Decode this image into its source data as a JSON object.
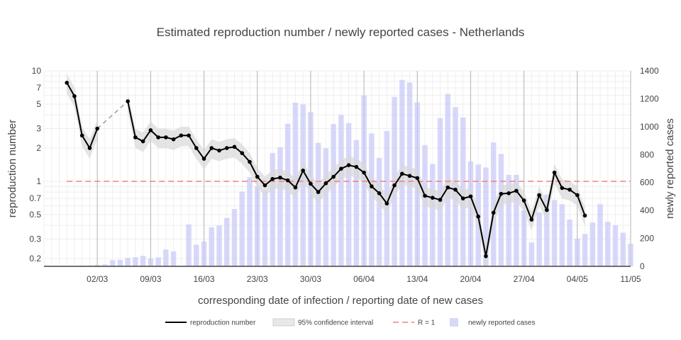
{
  "chart_data": {
    "type": "line",
    "title": "Estimated reproduction number / newly reported cases - Netherlands",
    "xlabel": "corresponding date of infection / reporting date of new cases",
    "ylabel_left": "reproduction number",
    "ylabel_right": "newly reported cases",
    "x_range": [
      "2020-02-24",
      "2020-05-11"
    ],
    "x_ticks": [
      "02/03",
      "09/03",
      "16/03",
      "23/03",
      "30/03",
      "06/04",
      "13/04",
      "20/04",
      "27/04",
      "04/05",
      "11/05"
    ],
    "x_tick_dates": [
      "2020-03-02",
      "2020-03-09",
      "2020-03-16",
      "2020-03-23",
      "2020-03-30",
      "2020-04-06",
      "2020-04-13",
      "2020-04-20",
      "2020-04-27",
      "2020-05-04",
      "2020-05-11"
    ],
    "y_left_scale": "log",
    "y_left_range": [
      0.17,
      10
    ],
    "y_left_ticks": [
      {
        "v": 0.2,
        "label": "0.2"
      },
      {
        "v": 0.3,
        "label": "0.3"
      },
      {
        "v": 0.5,
        "label": "0.5"
      },
      {
        "v": 0.7,
        "label": "0.7"
      },
      {
        "v": 1,
        "label": "1"
      },
      {
        "v": 2,
        "label": "2"
      },
      {
        "v": 3,
        "label": "3"
      },
      {
        "v": 5,
        "label": "5"
      },
      {
        "v": 7,
        "label": "7"
      },
      {
        "v": 10,
        "label": "10"
      }
    ],
    "y_right_range": [
      0,
      1400
    ],
    "y_right_ticks": [
      0,
      200,
      400,
      600,
      800,
      1000,
      1200,
      1400
    ],
    "grid": true,
    "legend_position": "bottom-center",
    "colors": {
      "r_line": "#000000",
      "ci_band": "#cccccc",
      "r_one": "#f08080",
      "bars": "#c8c8f8"
    },
    "series": [
      {
        "name": "reproduction number",
        "type": "line",
        "axis": "left",
        "points": [
          [
            "2020-02-27",
            7.8
          ],
          [
            "2020-02-28",
            5.9
          ],
          [
            "2020-02-29",
            2.6
          ],
          [
            "2020-03-01",
            2.0
          ],
          [
            "2020-03-02",
            3.0
          ],
          [
            "2020-03-06",
            5.3
          ],
          [
            "2020-03-07",
            2.5
          ],
          [
            "2020-03-08",
            2.3
          ],
          [
            "2020-03-09",
            2.9
          ],
          [
            "2020-03-10",
            2.5
          ],
          [
            "2020-03-11",
            2.5
          ],
          [
            "2020-03-12",
            2.4
          ],
          [
            "2020-03-13",
            2.6
          ],
          [
            "2020-03-14",
            2.6
          ],
          [
            "2020-03-15",
            2.0
          ],
          [
            "2020-03-16",
            1.6
          ],
          [
            "2020-03-17",
            2.0
          ],
          [
            "2020-03-18",
            1.9
          ],
          [
            "2020-03-19",
            2.0
          ],
          [
            "2020-03-20",
            2.05
          ],
          [
            "2020-03-21",
            1.8
          ],
          [
            "2020-03-22",
            1.5
          ],
          [
            "2020-03-23",
            1.1
          ],
          [
            "2020-03-24",
            0.92
          ],
          [
            "2020-03-25",
            1.05
          ],
          [
            "2020-03-26",
            1.08
          ],
          [
            "2020-03-27",
            1.02
          ],
          [
            "2020-03-28",
            0.88
          ],
          [
            "2020-03-29",
            1.25
          ],
          [
            "2020-03-30",
            0.95
          ],
          [
            "2020-03-31",
            0.8
          ],
          [
            "2020-04-01",
            0.96
          ],
          [
            "2020-04-02",
            1.1
          ],
          [
            "2020-04-03",
            1.3
          ],
          [
            "2020-04-04",
            1.4
          ],
          [
            "2020-04-05",
            1.35
          ],
          [
            "2020-04-06",
            1.2
          ],
          [
            "2020-04-07",
            0.9
          ],
          [
            "2020-04-08",
            0.78
          ],
          [
            "2020-04-09",
            0.63
          ],
          [
            "2020-04-10",
            0.92
          ],
          [
            "2020-04-11",
            1.17
          ],
          [
            "2020-04-12",
            1.12
          ],
          [
            "2020-04-13",
            1.07
          ],
          [
            "2020-04-14",
            0.74
          ],
          [
            "2020-04-15",
            0.71
          ],
          [
            "2020-04-16",
            0.68
          ],
          [
            "2020-04-17",
            0.88
          ],
          [
            "2020-04-18",
            0.84
          ],
          [
            "2020-04-19",
            0.7
          ],
          [
            "2020-04-20",
            0.73
          ],
          [
            "2020-04-21",
            0.48
          ],
          [
            "2020-04-22",
            0.21
          ],
          [
            "2020-04-23",
            0.52
          ],
          [
            "2020-04-24",
            0.77
          ],
          [
            "2020-04-25",
            0.78
          ],
          [
            "2020-04-26",
            0.82
          ],
          [
            "2020-04-27",
            0.67
          ],
          [
            "2020-04-28",
            0.45
          ],
          [
            "2020-04-29",
            0.75
          ],
          [
            "2020-04-30",
            0.55
          ],
          [
            "2020-05-01",
            1.2
          ],
          [
            "2020-05-02",
            0.87
          ],
          [
            "2020-05-03",
            0.84
          ],
          [
            "2020-05-04",
            0.75
          ],
          [
            "2020-05-05",
            0.49
          ]
        ]
      },
      {
        "name": "95% confidence interval",
        "type": "band",
        "axis": "left",
        "relative_low": 0.8,
        "relative_high": 1.2
      },
      {
        "name": "R = 1",
        "type": "hline",
        "axis": "left",
        "value": 1
      },
      {
        "name": "newly reported cases",
        "type": "bar",
        "axis": "right",
        "points": [
          [
            "2020-02-27",
            2
          ],
          [
            "2020-02-28",
            1
          ],
          [
            "2020-02-29",
            5
          ],
          [
            "2020-03-01",
            5
          ],
          [
            "2020-03-02",
            10
          ],
          [
            "2020-03-03",
            14
          ],
          [
            "2020-03-04",
            44
          ],
          [
            "2020-03-05",
            46
          ],
          [
            "2020-03-06",
            60
          ],
          [
            "2020-03-07",
            65
          ],
          [
            "2020-03-08",
            75
          ],
          [
            "2020-03-09",
            56
          ],
          [
            "2020-03-10",
            64
          ],
          [
            "2020-03-11",
            121
          ],
          [
            "2020-03-12",
            107
          ],
          [
            "2020-03-13",
            2
          ],
          [
            "2020-03-14",
            300
          ],
          [
            "2020-03-15",
            155
          ],
          [
            "2020-03-16",
            177
          ],
          [
            "2020-03-17",
            280
          ],
          [
            "2020-03-18",
            292
          ],
          [
            "2020-03-19",
            347
          ],
          [
            "2020-03-20",
            410
          ],
          [
            "2020-03-21",
            535
          ],
          [
            "2020-03-22",
            637
          ],
          [
            "2020-03-23",
            573
          ],
          [
            "2020-03-24",
            545
          ],
          [
            "2020-03-25",
            811
          ],
          [
            "2020-03-26",
            852
          ],
          [
            "2020-03-27",
            1021
          ],
          [
            "2020-03-28",
            1172
          ],
          [
            "2020-03-29",
            1159
          ],
          [
            "2020-03-30",
            1104
          ],
          [
            "2020-03-31",
            884
          ],
          [
            "2020-04-01",
            845
          ],
          [
            "2020-04-02",
            1019
          ],
          [
            "2020-04-03",
            1083
          ],
          [
            "2020-04-04",
            1026
          ],
          [
            "2020-04-05",
            904
          ],
          [
            "2020-04-06",
            1224
          ],
          [
            "2020-04-07",
            952
          ],
          [
            "2020-04-08",
            777
          ],
          [
            "2020-04-09",
            969
          ],
          [
            "2020-04-10",
            1213
          ],
          [
            "2020-04-11",
            1335
          ],
          [
            "2020-04-12",
            1316
          ],
          [
            "2020-04-13",
            1174
          ],
          [
            "2020-04-14",
            868
          ],
          [
            "2020-04-15",
            734
          ],
          [
            "2020-04-16",
            1061
          ],
          [
            "2020-04-17",
            1235
          ],
          [
            "2020-04-18",
            1140
          ],
          [
            "2020-04-19",
            1066
          ],
          [
            "2020-04-20",
            750
          ],
          [
            "2020-04-21",
            729
          ],
          [
            "2020-04-22",
            708
          ],
          [
            "2020-04-23",
            887
          ],
          [
            "2020-04-24",
            805
          ],
          [
            "2020-04-25",
            655
          ],
          [
            "2020-04-26",
            655
          ],
          [
            "2020-04-27",
            400
          ],
          [
            "2020-04-28",
            171
          ],
          [
            "2020-04-29",
            386
          ],
          [
            "2020-04-30",
            514
          ],
          [
            "2020-05-01",
            475
          ],
          [
            "2020-05-02",
            445
          ],
          [
            "2020-05-03",
            335
          ],
          [
            "2020-05-04",
            199
          ],
          [
            "2020-05-05",
            232
          ],
          [
            "2020-05-06",
            314
          ],
          [
            "2020-05-07",
            445
          ],
          [
            "2020-05-08",
            319
          ],
          [
            "2020-05-09",
            294
          ],
          [
            "2020-05-10",
            241
          ],
          [
            "2020-05-11",
            162
          ]
        ]
      }
    ]
  }
}
